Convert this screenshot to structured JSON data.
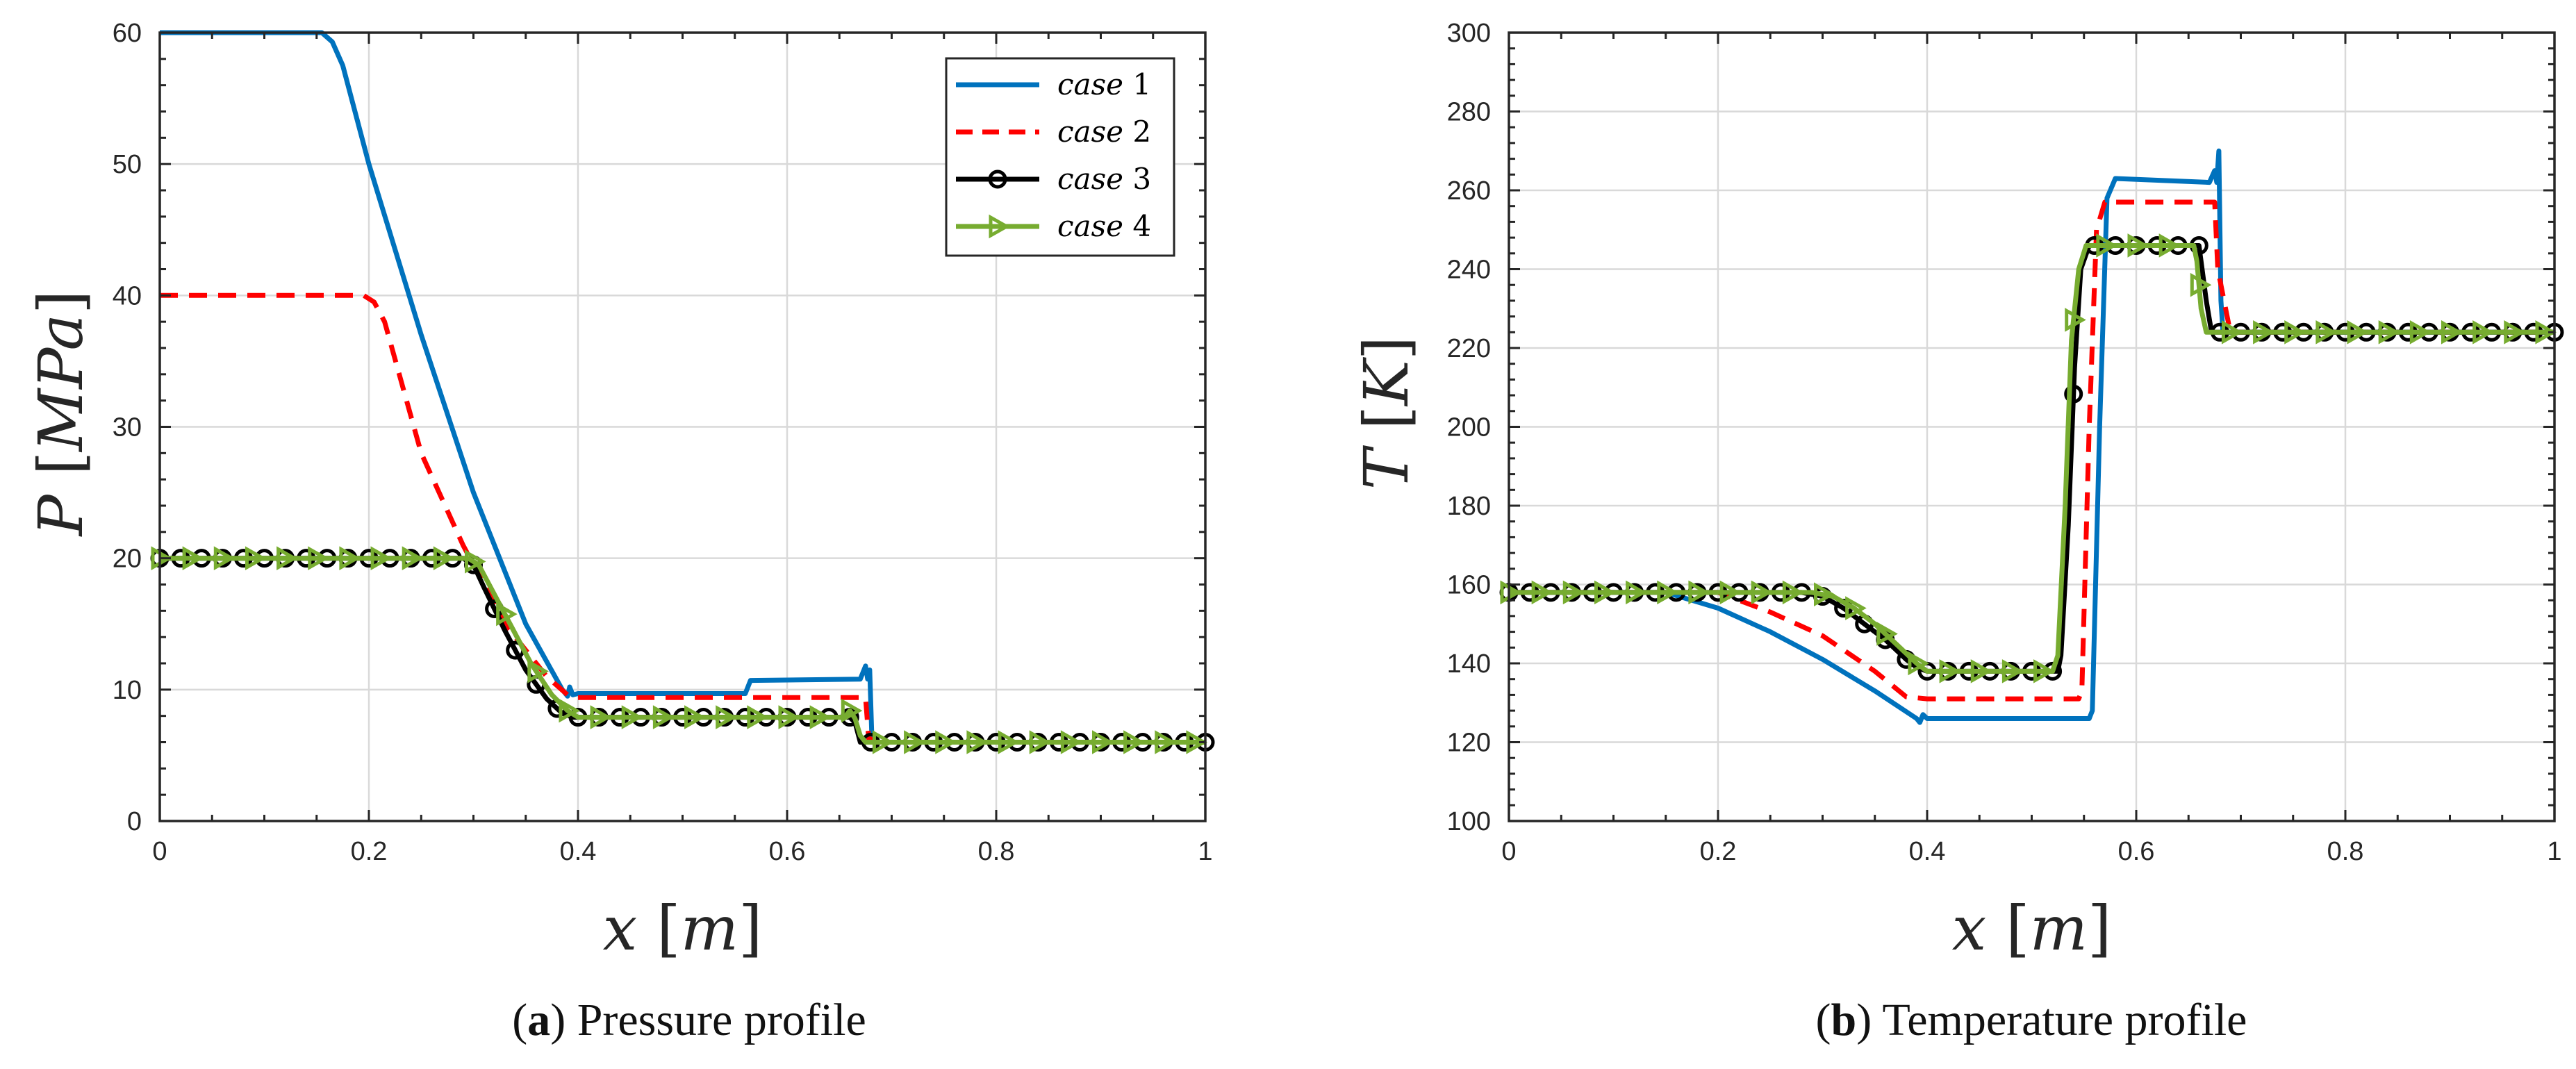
{
  "colors": {
    "case1": "#0072BD",
    "case2": "#FF0000",
    "case3": "#000000",
    "case4": "#77AC30",
    "grid": "#d9d9d9",
    "axis": "#262626"
  },
  "legend": {
    "entries": [
      {
        "word": "case",
        "num": "1"
      },
      {
        "word": "case",
        "num": "2"
      },
      {
        "word": "case",
        "num": "3"
      },
      {
        "word": "case",
        "num": "4"
      }
    ]
  },
  "chart_data": [
    {
      "type": "line",
      "panel": "a",
      "caption_letter": "a",
      "caption_text": "Pressure profile",
      "xlabel_var": "x",
      "xlabel_unit": "m",
      "ylabel_var": "P",
      "ylabel_unit": "MPa",
      "xlim": [
        0,
        1
      ],
      "ylim": [
        0,
        60
      ],
      "xticks": [
        0,
        0.2,
        0.4,
        0.6,
        0.8,
        1
      ],
      "xtick_labels": [
        "0",
        "0.2",
        "0.4",
        "0.6",
        "0.8",
        "1"
      ],
      "yticks": [
        0,
        10,
        20,
        30,
        40,
        50,
        60
      ],
      "ytick_labels": [
        "0",
        "10",
        "20",
        "30",
        "40",
        "50",
        "60"
      ],
      "grid": true,
      "legend_position": "top-right",
      "series": [
        {
          "name": "case 1",
          "color_key": "case1",
          "style": "solid",
          "marker": "none",
          "x": [
            0,
            0.155,
            0.165,
            0.175,
            0.2,
            0.25,
            0.3,
            0.35,
            0.385,
            0.39,
            0.392,
            0.395,
            0.4,
            0.56,
            0.565,
            0.67,
            0.675,
            0.677,
            0.679,
            0.681,
            0.683,
            0.7,
            1
          ],
          "y": [
            60,
            60,
            59.3,
            57.5,
            50,
            37,
            25,
            15,
            10,
            9.5,
            10.2,
            9.6,
            9.7,
            9.7,
            10.7,
            10.8,
            11.8,
            10.8,
            11.5,
            6.5,
            6,
            6,
            6
          ]
        },
        {
          "name": "case 2",
          "color_key": "case2",
          "style": "dashed",
          "marker": "none",
          "x": [
            0,
            0.195,
            0.205,
            0.215,
            0.25,
            0.29,
            0.33,
            0.37,
            0.39,
            0.4,
            0.675,
            0.678,
            0.69,
            1
          ],
          "y": [
            40,
            40,
            39.5,
            38,
            28,
            21,
            15,
            11,
            9.6,
            9.4,
            9.4,
            6.3,
            6,
            6
          ]
        },
        {
          "name": "case 3",
          "color_key": "case3",
          "style": "solid",
          "marker": "circle",
          "x": [
            0,
            0.29,
            0.3,
            0.31,
            0.33,
            0.35,
            0.37,
            0.385,
            0.395,
            0.66,
            0.665,
            0.67,
            1
          ],
          "y": [
            20,
            20,
            19.5,
            17.8,
            14.5,
            11.5,
            9.3,
            8.2,
            7.9,
            7.9,
            7.5,
            6,
            6
          ],
          "marker_x": [
            0,
            0.02,
            0.04,
            0.06,
            0.08,
            0.1,
            0.12,
            0.14,
            0.16,
            0.18,
            0.2,
            0.22,
            0.24,
            0.26,
            0.28,
            0.3,
            0.32,
            0.34,
            0.36,
            0.38,
            0.4,
            0.42,
            0.44,
            0.46,
            0.48,
            0.5,
            0.52,
            0.54,
            0.56,
            0.58,
            0.6,
            0.62,
            0.64,
            0.66,
            0.68,
            0.7,
            0.72,
            0.74,
            0.76,
            0.78,
            0.8,
            0.82,
            0.84,
            0.86,
            0.88,
            0.9,
            0.92,
            0.94,
            0.96,
            0.98,
            1
          ]
        },
        {
          "name": "case 4",
          "color_key": "case4",
          "style": "solid",
          "marker": "triangle-right",
          "x": [
            0,
            0.295,
            0.305,
            0.315,
            0.335,
            0.355,
            0.375,
            0.39,
            0.4,
            0.655,
            0.66,
            0.665,
            0.67,
            0.675,
            1
          ],
          "y": [
            20,
            20,
            19.5,
            18,
            15,
            12,
            9.6,
            8.4,
            7.9,
            7.9,
            8.4,
            7.8,
            6.5,
            6,
            6
          ],
          "marker_x": [
            0,
            0.03,
            0.06,
            0.09,
            0.12,
            0.15,
            0.18,
            0.21,
            0.24,
            0.27,
            0.3,
            0.33,
            0.36,
            0.39,
            0.42,
            0.45,
            0.48,
            0.51,
            0.54,
            0.57,
            0.6,
            0.63,
            0.66,
            0.69,
            0.72,
            0.75,
            0.78,
            0.81,
            0.84,
            0.87,
            0.9,
            0.93,
            0.96,
            0.99
          ]
        }
      ]
    },
    {
      "type": "line",
      "panel": "b",
      "caption_letter": "b",
      "caption_text": "Temperature profile",
      "xlabel_var": "x",
      "xlabel_unit": "m",
      "ylabel_var": "T",
      "ylabel_unit": "K",
      "xlim": [
        0,
        1
      ],
      "ylim": [
        100,
        300
      ],
      "xticks": [
        0,
        0.2,
        0.4,
        0.6,
        0.8,
        1
      ],
      "xtick_labels": [
        "0",
        "0.2",
        "0.4",
        "0.6",
        "0.8",
        "1"
      ],
      "yticks": [
        100,
        120,
        140,
        160,
        180,
        200,
        220,
        240,
        260,
        280,
        300
      ],
      "ytick_labels": [
        "100",
        "120",
        "140",
        "160",
        "180",
        "200",
        "220",
        "240",
        "260",
        "280",
        "300"
      ],
      "grid": true,
      "series": [
        {
          "name": "case 1",
          "color_key": "case1",
          "style": "solid",
          "marker": "none",
          "x": [
            0,
            0.15,
            0.2,
            0.25,
            0.3,
            0.35,
            0.39,
            0.393,
            0.396,
            0.4,
            0.555,
            0.558,
            0.565,
            0.572,
            0.58,
            0.67,
            0.675,
            0.677,
            0.679,
            0.681,
            0.683,
            0.69,
            1
          ],
          "y": [
            158,
            158,
            154,
            148,
            141,
            133,
            126,
            125,
            127,
            126,
            126,
            128,
            200,
            258,
            263,
            262,
            265,
            262,
            270,
            232,
            224,
            224,
            224
          ]
        },
        {
          "name": "case 2",
          "color_key": "case2",
          "style": "dashed",
          "marker": "none",
          "x": [
            0,
            0.2,
            0.25,
            0.3,
            0.35,
            0.38,
            0.4,
            0.545,
            0.548,
            0.555,
            0.562,
            0.57,
            0.675,
            0.678,
            0.69,
            1
          ],
          "y": [
            158,
            158,
            153,
            147,
            138,
            131.5,
            131,
            131,
            133,
            200,
            250,
            257,
            257,
            240,
            224,
            224
          ]
        },
        {
          "name": "case 3",
          "color_key": "case3",
          "style": "solid",
          "marker": "circle",
          "x": [
            0,
            0.28,
            0.3,
            0.32,
            0.34,
            0.36,
            0.38,
            0.39,
            0.4,
            0.525,
            0.528,
            0.535,
            0.541,
            0.547,
            0.555,
            0.66,
            0.663,
            0.667,
            0.672,
            1
          ],
          "y": [
            158,
            158,
            157,
            154,
            150,
            146,
            141,
            139,
            138,
            138,
            142,
            175,
            215,
            240,
            246,
            246,
            240,
            232,
            224,
            224
          ],
          "marker_x": [
            0,
            0.02,
            0.04,
            0.06,
            0.08,
            0.1,
            0.12,
            0.14,
            0.16,
            0.18,
            0.2,
            0.22,
            0.24,
            0.26,
            0.28,
            0.3,
            0.32,
            0.34,
            0.36,
            0.38,
            0.4,
            0.42,
            0.44,
            0.46,
            0.48,
            0.5,
            0.52,
            0.54,
            0.56,
            0.58,
            0.6,
            0.62,
            0.64,
            0.66,
            0.68,
            0.7,
            0.72,
            0.74,
            0.76,
            0.78,
            0.8,
            0.82,
            0.84,
            0.86,
            0.88,
            0.9,
            0.92,
            0.94,
            0.96,
            0.98,
            1
          ]
        },
        {
          "name": "case 4",
          "color_key": "case4",
          "style": "solid",
          "marker": "triangle-right",
          "x": [
            0,
            0.29,
            0.31,
            0.33,
            0.35,
            0.37,
            0.39,
            0.4,
            0.52,
            0.525,
            0.532,
            0.538,
            0.545,
            0.552,
            0.655,
            0.658,
            0.662,
            0.667,
            1
          ],
          "y": [
            158,
            158,
            157,
            154,
            150,
            145,
            140,
            138,
            138,
            142,
            180,
            222,
            240,
            246,
            246,
            242,
            230,
            224,
            224
          ],
          "marker_x": [
            0,
            0.03,
            0.06,
            0.09,
            0.12,
            0.15,
            0.18,
            0.21,
            0.24,
            0.27,
            0.3,
            0.33,
            0.36,
            0.39,
            0.42,
            0.45,
            0.48,
            0.51,
            0.54,
            0.57,
            0.6,
            0.63,
            0.66,
            0.69,
            0.72,
            0.75,
            0.78,
            0.81,
            0.84,
            0.87,
            0.9,
            0.93,
            0.96,
            0.99
          ]
        }
      ]
    }
  ]
}
